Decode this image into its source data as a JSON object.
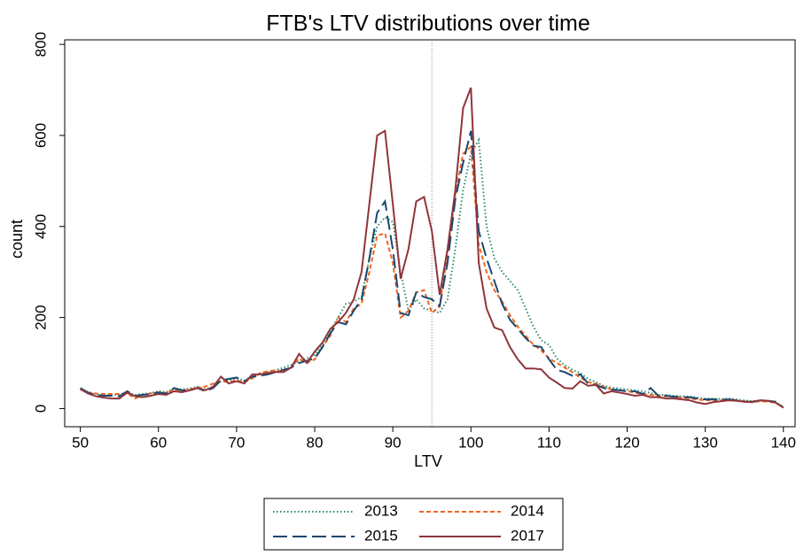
{
  "chart_data": {
    "type": "line",
    "title": "FTB's LTV distributions over time",
    "x_label": "LTV",
    "y_label": "count",
    "x": [
      50,
      51,
      52,
      53,
      54,
      55,
      56,
      57,
      58,
      59,
      60,
      61,
      62,
      63,
      64,
      65,
      66,
      67,
      68,
      69,
      70,
      71,
      72,
      73,
      74,
      75,
      76,
      77,
      78,
      79,
      80,
      81,
      82,
      83,
      84,
      85,
      86,
      87,
      88,
      89,
      90,
      91,
      92,
      93,
      94,
      95,
      96,
      97,
      98,
      99,
      100,
      101,
      102,
      103,
      104,
      105,
      106,
      107,
      108,
      109,
      110,
      111,
      112,
      113,
      114,
      115,
      116,
      117,
      118,
      119,
      120,
      121,
      122,
      123,
      124,
      125,
      126,
      127,
      128,
      129,
      130,
      131,
      132,
      133,
      134,
      135,
      136,
      137,
      138,
      139,
      140
    ],
    "xlim": [
      48,
      141.5
    ],
    "ylim": [
      -40,
      810
    ],
    "xticks": [
      50,
      60,
      70,
      80,
      90,
      100,
      110,
      120,
      130,
      140
    ],
    "yticks": [
      0,
      200,
      400,
      600,
      800
    ],
    "vline": 95,
    "series": [
      {
        "name": "2013",
        "color": "#2e8b6e",
        "line_style": "dotted",
        "values": [
          44,
          36,
          32,
          30,
          30,
          30,
          36,
          30,
          32,
          34,
          38,
          36,
          44,
          42,
          44,
          48,
          42,
          48,
          60,
          62,
          66,
          62,
          72,
          76,
          80,
          84,
          90,
          96,
          104,
          110,
          118,
          140,
          170,
          200,
          230,
          235,
          245,
          330,
          400,
          420,
          410,
          300,
          215,
          240,
          220,
          215,
          210,
          240,
          350,
          480,
          560,
          590,
          400,
          330,
          300,
          280,
          260,
          220,
          180,
          150,
          140,
          110,
          95,
          85,
          78,
          65,
          58,
          50,
          46,
          44,
          42,
          40,
          38,
          34,
          30,
          30,
          28,
          27,
          26,
          24,
          22,
          22,
          21,
          22,
          20,
          18,
          16,
          18,
          17,
          15,
          3
        ]
      },
      {
        "name": "2014",
        "color": "#f26522",
        "line_style": "short-dash",
        "values": [
          42,
          35,
          33,
          32,
          32,
          32,
          34,
          22,
          30,
          33,
          36,
          34,
          42,
          40,
          42,
          46,
          48,
          55,
          60,
          58,
          62,
          58,
          66,
          78,
          82,
          84,
          82,
          90,
          110,
          100,
          108,
          135,
          160,
          200,
          190,
          220,
          230,
          300,
          380,
          385,
          320,
          200,
          215,
          255,
          260,
          210,
          225,
          340,
          470,
          560,
          575,
          360,
          300,
          260,
          235,
          205,
          180,
          160,
          140,
          128,
          110,
          100,
          90,
          80,
          68,
          58,
          55,
          48,
          42,
          40,
          38,
          35,
          32,
          30,
          28,
          27,
          26,
          24,
          22,
          20,
          18,
          18,
          18,
          18,
          18,
          16,
          14,
          16,
          15,
          13,
          2
        ]
      },
      {
        "name": "2015",
        "color": "#1a476f",
        "line_style": "long-dash",
        "values": [
          45,
          35,
          30,
          28,
          28,
          27,
          38,
          28,
          30,
          32,
          35,
          33,
          45,
          40,
          40,
          45,
          38,
          45,
          62,
          65,
          68,
          60,
          70,
          72,
          75,
          80,
          85,
          90,
          100,
          105,
          110,
          135,
          165,
          190,
          185,
          215,
          240,
          330,
          430,
          455,
          350,
          210,
          205,
          255,
          245,
          240,
          225,
          320,
          460,
          540,
          610,
          390,
          330,
          280,
          230,
          195,
          175,
          155,
          138,
          135,
          108,
          85,
          80,
          72,
          75,
          55,
          52,
          45,
          42,
          40,
          38,
          38,
          32,
          45,
          28,
          28,
          26,
          25,
          25,
          22,
          20,
          20,
          19,
          20,
          18,
          15,
          15,
          18,
          17,
          15,
          2
        ]
      },
      {
        "name": "2017",
        "color": "#90353b",
        "line_style": "solid",
        "values": [
          43,
          33,
          27,
          24,
          22,
          22,
          35,
          27,
          25,
          28,
          32,
          30,
          38,
          36,
          40,
          45,
          40,
          48,
          70,
          55,
          60,
          55,
          75,
          75,
          78,
          80,
          80,
          90,
          120,
          100,
          125,
          145,
          175,
          190,
          210,
          240,
          300,
          450,
          600,
          610,
          450,
          285,
          350,
          455,
          465,
          390,
          250,
          350,
          480,
          660,
          705,
          320,
          220,
          178,
          172,
          135,
          108,
          88,
          88,
          86,
          68,
          57,
          45,
          44,
          60,
          50,
          52,
          33,
          38,
          35,
          32,
          28,
          30,
          25,
          25,
          22,
          22,
          20,
          18,
          13,
          10,
          14,
          16,
          18,
          17,
          15,
          14,
          18,
          17,
          13,
          2
        ]
      }
    ]
  }
}
